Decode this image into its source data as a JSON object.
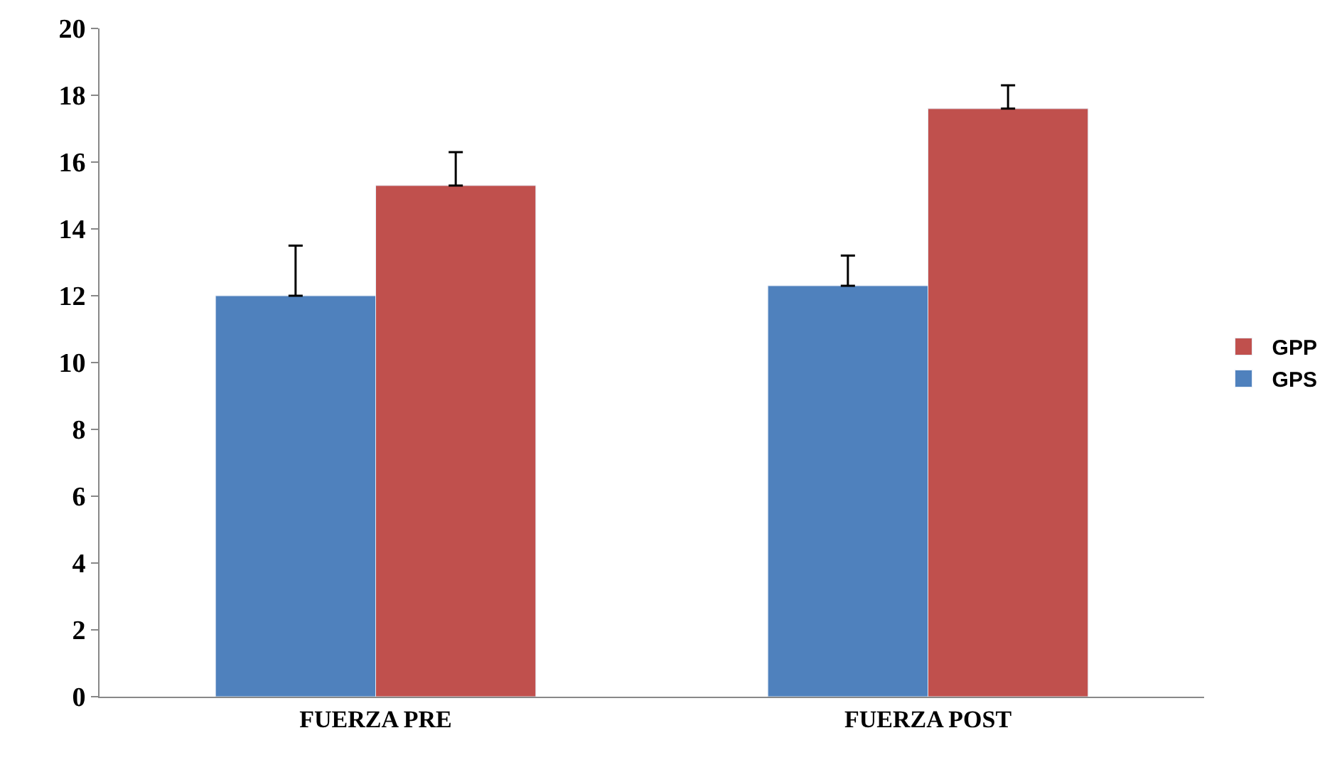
{
  "chart_data": {
    "type": "bar",
    "categories": [
      "FUERZA PRE",
      "FUERZA POST"
    ],
    "series": [
      {
        "name": "GPS",
        "color": "#4f81bd",
        "values": [
          12.0,
          12.3
        ],
        "errors": [
          [
            12.0,
            13.5
          ],
          [
            12.3,
            13.2
          ]
        ]
      },
      {
        "name": "GPP",
        "color": "#c0504d",
        "values": [
          15.3,
          17.6
        ],
        "errors": [
          [
            15.3,
            16.3
          ],
          [
            17.6,
            18.3
          ]
        ]
      }
    ],
    "ylim": [
      0,
      20
    ],
    "yticks": [
      0,
      2,
      4,
      6,
      8,
      10,
      12,
      14,
      16,
      18,
      20
    ],
    "legend": "right"
  }
}
